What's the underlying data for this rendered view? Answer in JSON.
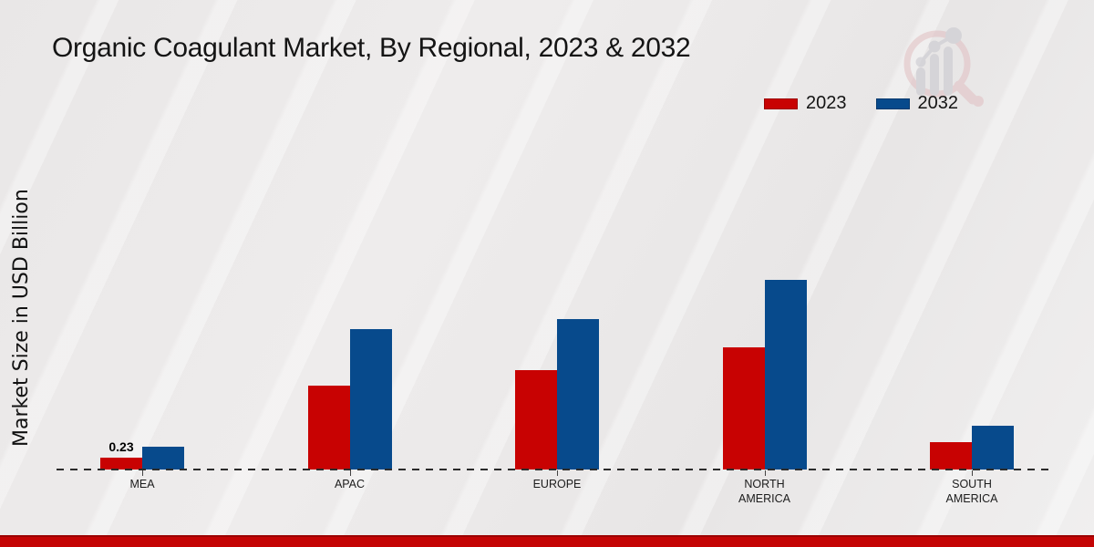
{
  "title": "Organic Coagulant Market, By Regional, 2023 & 2032",
  "y_axis_label": "Market Size in USD Billion",
  "legend": {
    "position": "top-right",
    "items": [
      {
        "label": "2023",
        "color": "#c80202"
      },
      {
        "label": "2032",
        "color": "#074a8c"
      }
    ]
  },
  "watermark_icon": "magnifier-growth-chart-logo",
  "colors": {
    "series_2023": "#c80202",
    "series_2032": "#074a8c",
    "footer_bar": "#c40404",
    "background": "#eae8e8",
    "axis_dash": "#2b2b2b"
  },
  "chart_data": {
    "type": "bar",
    "title": "Organic Coagulant Market, By Regional, 2023 & 2032",
    "xlabel": "",
    "ylabel": "Market Size in USD Billion",
    "categories": [
      "MEA",
      "APAC",
      "EUROPE",
      "NORTH AMERICA",
      "SOUTH AMERICA"
    ],
    "series": [
      {
        "name": "2023",
        "color": "#c80202",
        "values": [
          0.23,
          1.63,
          1.93,
          2.38,
          0.53
        ]
      },
      {
        "name": "2032",
        "color": "#074a8c",
        "values": [
          0.44,
          2.73,
          2.92,
          3.68,
          0.85
        ]
      }
    ],
    "data_labels": [
      {
        "series": "2023",
        "category": "MEA",
        "text": "0.23"
      }
    ],
    "ylim": [
      0,
      4
    ],
    "grid": false,
    "y_axis_ticks_visible": false,
    "baseline_style": "dashed",
    "legend_position": "top-right"
  }
}
